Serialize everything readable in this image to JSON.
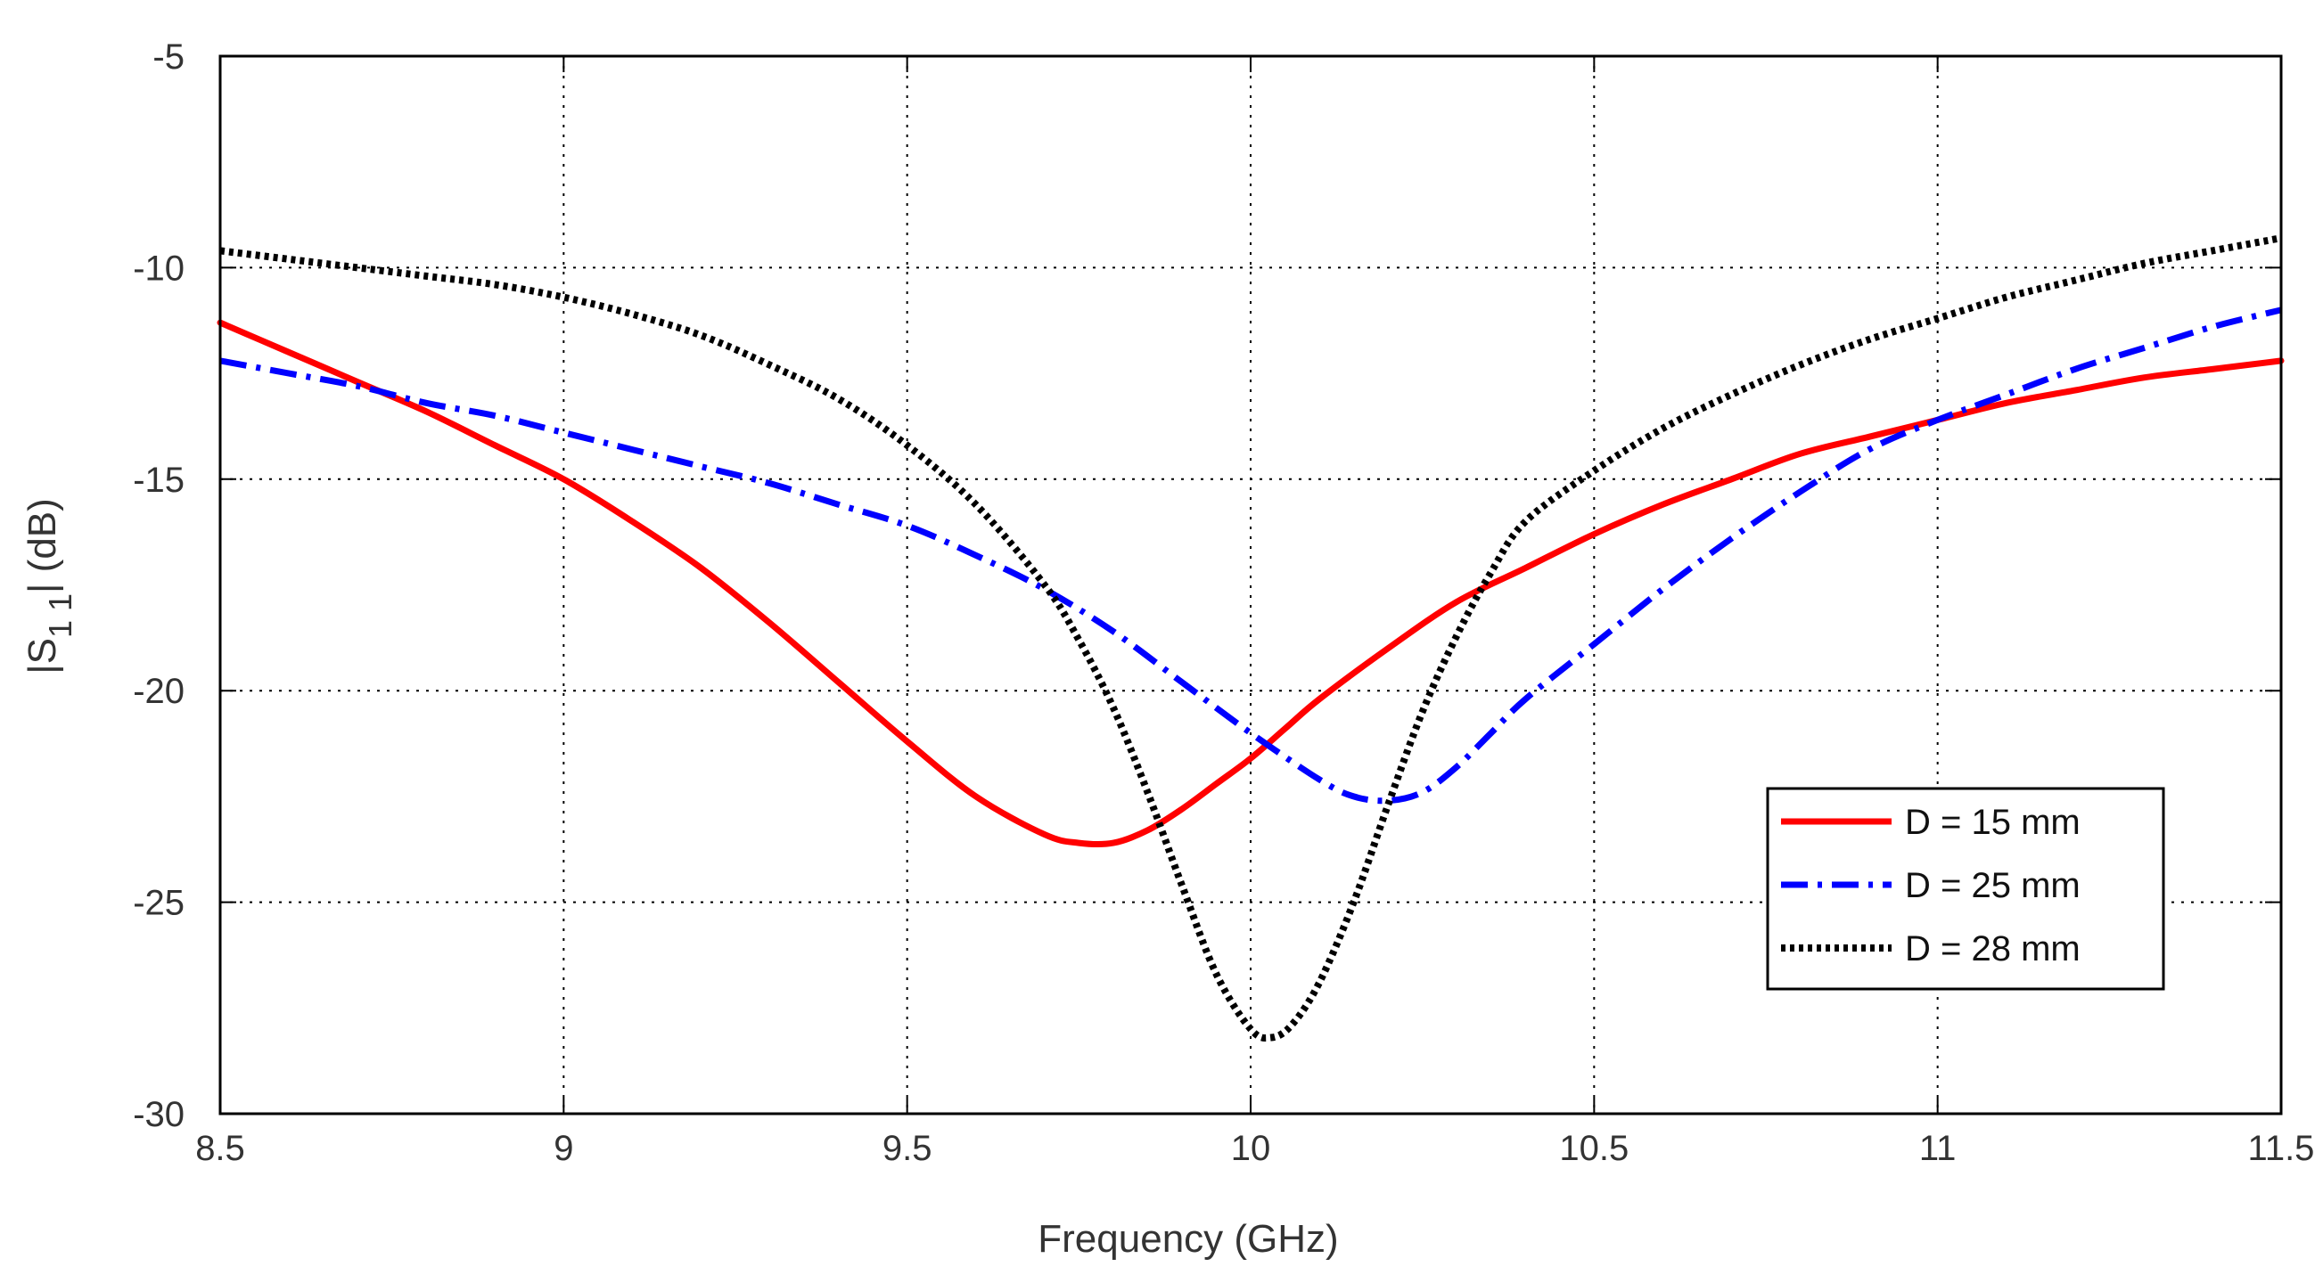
{
  "chart_data": {
    "type": "line",
    "title": "",
    "xlabel": "Frequency (GHz)",
    "ylabel_parts": {
      "prefix": "|S",
      "subscript": "1 1",
      "suffix": "| (dB)"
    },
    "xlim": [
      8.5,
      11.5
    ],
    "ylim": [
      -30,
      -5
    ],
    "xticks": [
      8.5,
      9,
      9.5,
      10,
      10.5,
      11,
      11.5
    ],
    "xtick_labels": [
      "8.5",
      "9",
      "9.5",
      "10",
      "10.5",
      "11",
      "11.5"
    ],
    "yticks": [
      -30,
      -25,
      -20,
      -15,
      -10,
      -5
    ],
    "ytick_labels": [
      "-30",
      "-25",
      "-20",
      "-15",
      "-10",
      "-5"
    ],
    "grid": true,
    "legend_position": "lower-right",
    "series": [
      {
        "name": "D = 15 mm",
        "color": "#ff0000",
        "style": "solid",
        "x": [
          8.5,
          8.6,
          8.7,
          8.8,
          8.9,
          9.0,
          9.1,
          9.2,
          9.3,
          9.4,
          9.5,
          9.6,
          9.7,
          9.75,
          9.8,
          9.85,
          9.9,
          9.95,
          10.0,
          10.05,
          10.1,
          10.2,
          10.3,
          10.4,
          10.5,
          10.6,
          10.7,
          10.8,
          10.9,
          11.0,
          11.1,
          11.2,
          11.3,
          11.4,
          11.5
        ],
        "values": [
          -11.3,
          -12.0,
          -12.7,
          -13.4,
          -14.2,
          -15.0,
          -16.0,
          -17.1,
          -18.4,
          -19.8,
          -21.2,
          -22.5,
          -23.4,
          -23.6,
          -23.6,
          -23.3,
          -22.8,
          -22.2,
          -21.6,
          -20.9,
          -20.2,
          -19.0,
          -17.9,
          -17.1,
          -16.3,
          -15.6,
          -15.0,
          -14.4,
          -14.0,
          -13.6,
          -13.2,
          -12.9,
          -12.6,
          -12.4,
          -12.2
        ]
      },
      {
        "name": "D = 25 mm",
        "color": "#0000ff",
        "style": "dashdot",
        "x": [
          8.5,
          8.6,
          8.7,
          8.8,
          8.9,
          9.0,
          9.1,
          9.2,
          9.3,
          9.4,
          9.5,
          9.6,
          9.7,
          9.8,
          9.9,
          10.0,
          10.1,
          10.15,
          10.2,
          10.25,
          10.3,
          10.35,
          10.4,
          10.5,
          10.6,
          10.7,
          10.8,
          10.9,
          11.0,
          11.1,
          11.2,
          11.3,
          11.4,
          11.5
        ],
        "values": [
          -12.2,
          -12.5,
          -12.8,
          -13.2,
          -13.5,
          -13.9,
          -14.3,
          -14.7,
          -15.1,
          -15.6,
          -16.1,
          -16.8,
          -17.6,
          -18.6,
          -19.8,
          -21.0,
          -22.1,
          -22.5,
          -22.6,
          -22.4,
          -21.8,
          -21.0,
          -20.2,
          -18.9,
          -17.6,
          -16.4,
          -15.3,
          -14.3,
          -13.6,
          -13.0,
          -12.4,
          -11.9,
          -11.4,
          -11.0
        ]
      },
      {
        "name": "D = 28 mm",
        "color": "#000000",
        "style": "dotted",
        "x": [
          8.5,
          8.6,
          8.7,
          8.8,
          8.9,
          9.0,
          9.1,
          9.2,
          9.3,
          9.4,
          9.5,
          9.6,
          9.7,
          9.75,
          9.8,
          9.85,
          9.9,
          9.95,
          10.0,
          10.03,
          10.06,
          10.1,
          10.15,
          10.2,
          10.25,
          10.3,
          10.35,
          10.4,
          10.5,
          10.6,
          10.7,
          10.8,
          10.9,
          11.0,
          11.1,
          11.2,
          11.3,
          11.4,
          11.5
        ],
        "values": [
          -9.6,
          -9.8,
          -10.0,
          -10.2,
          -10.4,
          -10.7,
          -11.1,
          -11.6,
          -12.3,
          -13.1,
          -14.2,
          -15.6,
          -17.5,
          -18.8,
          -20.4,
          -22.4,
          -24.6,
          -26.7,
          -28.0,
          -28.2,
          -27.9,
          -26.9,
          -25.0,
          -22.7,
          -20.5,
          -18.7,
          -17.2,
          -16.0,
          -14.8,
          -13.8,
          -13.0,
          -12.3,
          -11.7,
          -11.2,
          -10.7,
          -10.3,
          -9.9,
          -9.6,
          -9.3
        ]
      }
    ]
  }
}
